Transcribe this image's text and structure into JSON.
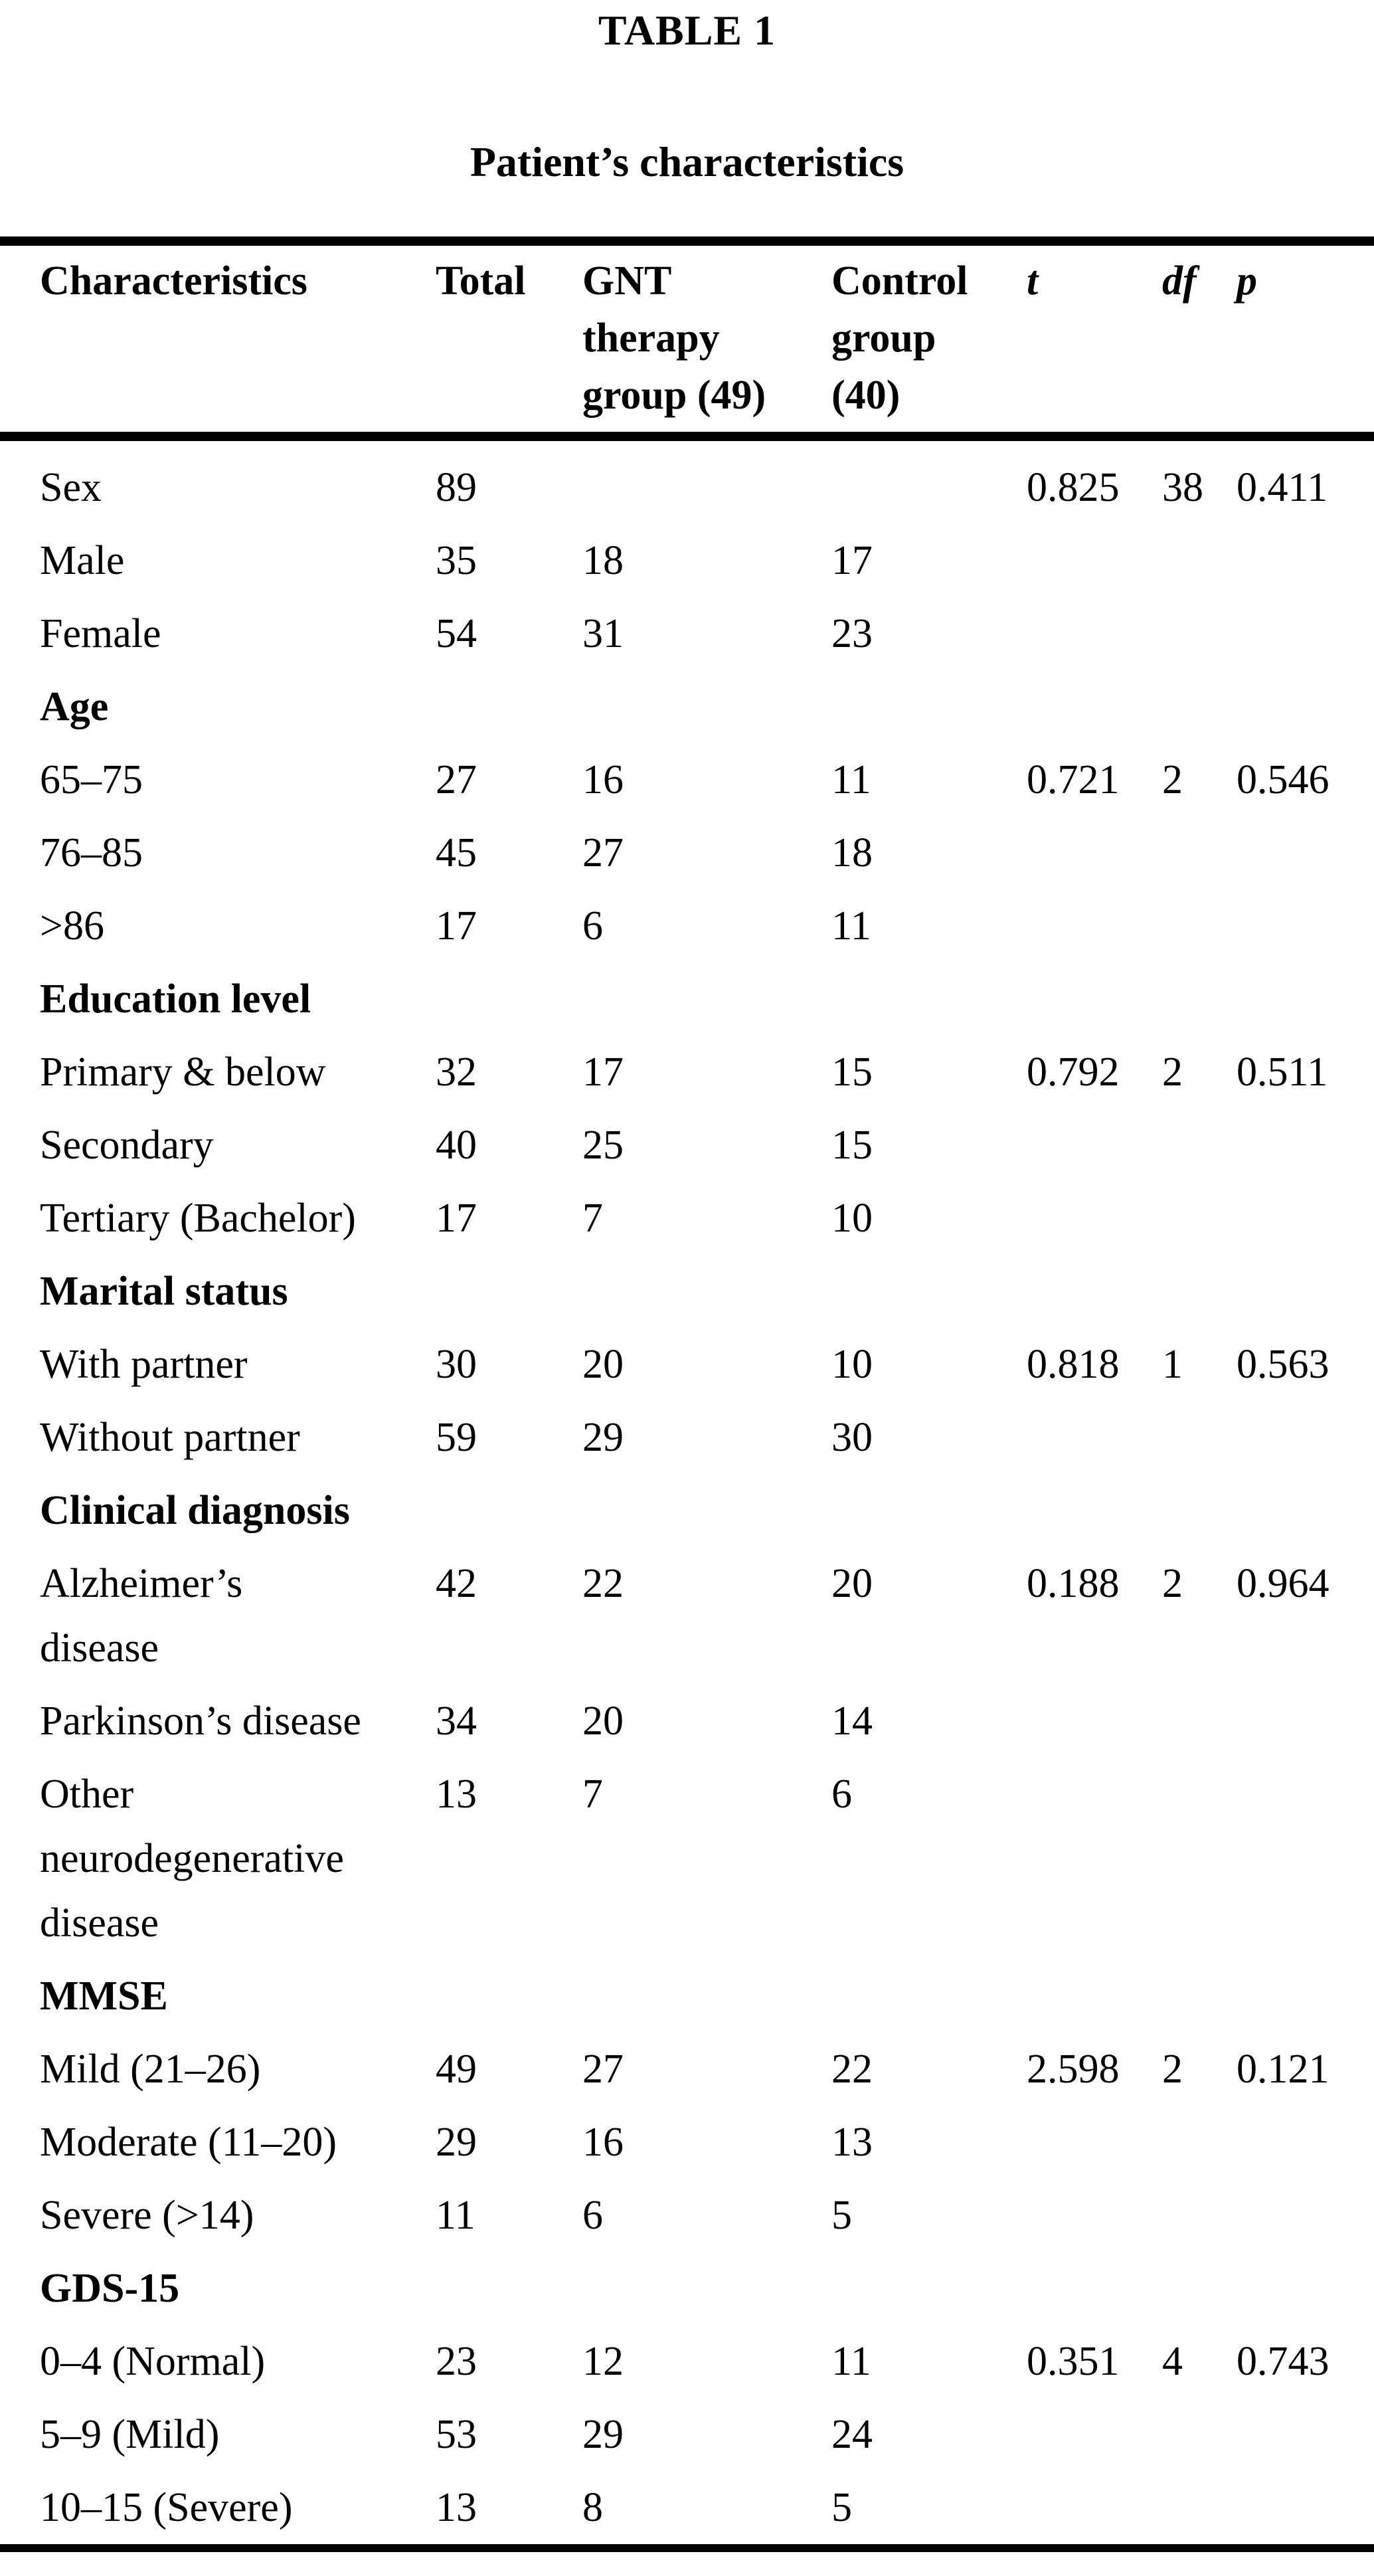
{
  "table": {
    "title": "TABLE 1",
    "subtitle": "Patient’s characteristics",
    "columns": [
      "Characteristics",
      "Total",
      "GNT\ntherapy\ngroup (49)",
      "Control\ngroup\n(40)",
      "t",
      "df",
      "p"
    ],
    "rows": [
      {
        "section": false,
        "label": "Sex",
        "total": "89",
        "gnt": "",
        "control": "",
        "t": "0.825",
        "df": "38",
        "p": "0.411"
      },
      {
        "section": false,
        "label": "Male",
        "total": "35",
        "gnt": "18",
        "control": "17",
        "t": "",
        "df": "",
        "p": ""
      },
      {
        "section": false,
        "label": "Female",
        "total": "54",
        "gnt": "31",
        "control": "23",
        "t": "",
        "df": "",
        "p": ""
      },
      {
        "section": true,
        "label": "Age",
        "total": "",
        "gnt": "",
        "control": "",
        "t": "",
        "df": "",
        "p": ""
      },
      {
        "section": false,
        "label": "65–75",
        "total": "27",
        "gnt": "16",
        "control": "11",
        "t": "0.721",
        "df": "2",
        "p": "0.546"
      },
      {
        "section": false,
        "label": "76–85",
        "total": "45",
        "gnt": "27",
        "control": "18",
        "t": "",
        "df": "",
        "p": ""
      },
      {
        "section": false,
        "label": ">86",
        "total": "17",
        "gnt": "6",
        "control": "11",
        "t": "",
        "df": "",
        "p": ""
      },
      {
        "section": true,
        "label": "Education level",
        "total": "",
        "gnt": "",
        "control": "",
        "t": "",
        "df": "",
        "p": ""
      },
      {
        "section": false,
        "label": "Primary & below",
        "total": "32",
        "gnt": "17",
        "control": "15",
        "t": "0.792",
        "df": "2",
        "p": "0.511"
      },
      {
        "section": false,
        "label": "Secondary",
        "total": "40",
        "gnt": "25",
        "control": "15",
        "t": "",
        "df": "",
        "p": ""
      },
      {
        "section": false,
        "label": "Tertiary (Bachelor)",
        "total": "17",
        "gnt": "7",
        "control": "10",
        "t": "",
        "df": "",
        "p": ""
      },
      {
        "section": true,
        "label": "Marital status",
        "total": "",
        "gnt": "",
        "control": "",
        "t": "",
        "df": "",
        "p": ""
      },
      {
        "section": false,
        "label": "With partner",
        "total": "30",
        "gnt": "20",
        "control": "10",
        "t": "0.818",
        "df": "1",
        "p": "0.563"
      },
      {
        "section": false,
        "label": "Without partner",
        "total": "59",
        "gnt": "29",
        "control": "30",
        "t": "",
        "df": "",
        "p": ""
      },
      {
        "section": true,
        "label": "Clinical diagnosis",
        "total": "",
        "gnt": "",
        "control": "",
        "t": "",
        "df": "",
        "p": ""
      },
      {
        "section": false,
        "label": "Alzheimer’s\ndisease",
        "total": "42",
        "gnt": "22",
        "control": "20",
        "t": "0.188",
        "df": "2",
        "p": "0.964"
      },
      {
        "section": false,
        "label": "Parkinson’s disease",
        "total": "34",
        "gnt": "20",
        "control": "14",
        "t": "",
        "df": "",
        "p": ""
      },
      {
        "section": false,
        "label": "Other\nneurodegenerative\ndisease",
        "total": "13",
        "gnt": "7",
        "control": "6",
        "t": "",
        "df": "",
        "p": ""
      },
      {
        "section": true,
        "label": "MMSE",
        "total": "",
        "gnt": "",
        "control": "",
        "t": "",
        "df": "",
        "p": ""
      },
      {
        "section": false,
        "label": "Mild (21–26)",
        "total": "49",
        "gnt": "27",
        "control": "22",
        "t": "2.598",
        "df": "2",
        "p": "0.121"
      },
      {
        "section": false,
        "label": "Moderate (11–20)",
        "total": "29",
        "gnt": "16",
        "control": "13",
        "t": "",
        "df": "",
        "p": ""
      },
      {
        "section": false,
        "label": "Severe (>14)",
        "total": "11",
        "gnt": "6",
        "control": "5",
        "t": "",
        "df": "",
        "p": ""
      },
      {
        "section": true,
        "label": "GDS-15",
        "total": "",
        "gnt": "",
        "control": "",
        "t": "",
        "df": "",
        "p": ""
      },
      {
        "section": false,
        "label": "0–4 (Normal)",
        "total": "23",
        "gnt": "12",
        "control": "11",
        "t": "0.351",
        "df": "4",
        "p": "0.743"
      },
      {
        "section": false,
        "label": "5–9 (Mild)",
        "total": "53",
        "gnt": "29",
        "control": "24",
        "t": "",
        "df": "",
        "p": ""
      },
      {
        "section": false,
        "label": "10–15 (Severe)",
        "total": "13",
        "gnt": "8",
        "control": "5",
        "t": "",
        "df": "",
        "p": ""
      }
    ]
  }
}
